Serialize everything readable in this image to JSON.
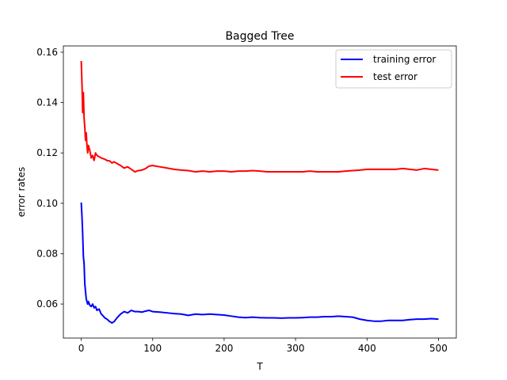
{
  "chart_data": {
    "type": "line",
    "title": "Bagged Tree",
    "xlabel": "T",
    "ylabel": "error rates",
    "xlim": [
      -25,
      525
    ],
    "ylim": [
      0.0465,
      0.1625
    ],
    "x_ticks": [
      0,
      100,
      200,
      300,
      400,
      500
    ],
    "x_tick_labels": [
      "0",
      "100",
      "200",
      "300",
      "400",
      "500"
    ],
    "y_ticks": [
      0.06,
      0.08,
      0.1,
      0.12,
      0.14,
      0.16
    ],
    "y_tick_labels": [
      "0.06",
      "0.08",
      "0.10",
      "0.12",
      "0.14",
      "0.16"
    ],
    "grid": false,
    "legend_position": "upper-right",
    "series": [
      {
        "name": "training error",
        "color": "#0000ff",
        "x": [
          0,
          1,
          2,
          3,
          4,
          5,
          6,
          7,
          8,
          9,
          10,
          12,
          14,
          16,
          18,
          20,
          22,
          25,
          28,
          30,
          33,
          36,
          40,
          43,
          46,
          50,
          55,
          60,
          65,
          70,
          75,
          80,
          85,
          90,
          95,
          100,
          110,
          120,
          130,
          140,
          150,
          160,
          170,
          180,
          190,
          200,
          210,
          220,
          230,
          240,
          250,
          260,
          270,
          280,
          290,
          300,
          310,
          320,
          330,
          340,
          350,
          360,
          370,
          380,
          390,
          400,
          410,
          420,
          430,
          440,
          450,
          460,
          470,
          480,
          490,
          500
        ],
        "y": [
          0.1003,
          0.095,
          0.088,
          0.079,
          0.076,
          0.068,
          0.065,
          0.062,
          0.061,
          0.06,
          0.061,
          0.0595,
          0.059,
          0.06,
          0.0585,
          0.059,
          0.0575,
          0.058,
          0.056,
          0.0555,
          0.0545,
          0.054,
          0.053,
          0.0525,
          0.053,
          0.0545,
          0.056,
          0.057,
          0.0565,
          0.0575,
          0.057,
          0.057,
          0.0568,
          0.0572,
          0.0575,
          0.057,
          0.0568,
          0.0565,
          0.0562,
          0.056,
          0.0555,
          0.056,
          0.0558,
          0.056,
          0.0558,
          0.0556,
          0.0552,
          0.0548,
          0.0546,
          0.0548,
          0.0546,
          0.0545,
          0.0545,
          0.0544,
          0.0545,
          0.0545,
          0.0546,
          0.0548,
          0.0548,
          0.055,
          0.055,
          0.0552,
          0.055,
          0.0548,
          0.054,
          0.0535,
          0.0532,
          0.0532,
          0.0535,
          0.0535,
          0.0535,
          0.0538,
          0.054,
          0.054,
          0.0542,
          0.054
        ]
      },
      {
        "name": "test error",
        "color": "#ff0000",
        "x": [
          0,
          1,
          2,
          3,
          4,
          5,
          6,
          7,
          8,
          9,
          10,
          12,
          14,
          16,
          18,
          20,
          22,
          25,
          28,
          30,
          33,
          36,
          40,
          43,
          46,
          50,
          55,
          60,
          65,
          70,
          75,
          80,
          85,
          90,
          95,
          100,
          110,
          120,
          130,
          140,
          150,
          160,
          170,
          180,
          190,
          200,
          210,
          220,
          230,
          240,
          250,
          260,
          270,
          280,
          290,
          300,
          310,
          320,
          330,
          340,
          350,
          360,
          370,
          380,
          390,
          400,
          410,
          420,
          430,
          440,
          450,
          460,
          470,
          480,
          490,
          500
        ],
        "y": [
          0.1565,
          0.148,
          0.136,
          0.144,
          0.134,
          0.13,
          0.125,
          0.128,
          0.123,
          0.12,
          0.123,
          0.121,
          0.118,
          0.119,
          0.117,
          0.12,
          0.119,
          0.1185,
          0.118,
          0.1178,
          0.1175,
          0.117,
          0.1168,
          0.116,
          0.1165,
          0.1158,
          0.115,
          0.114,
          0.1145,
          0.1135,
          0.1125,
          0.113,
          0.1132,
          0.1138,
          0.1148,
          0.115,
          0.1145,
          0.114,
          0.1135,
          0.1132,
          0.113,
          0.1125,
          0.1128,
          0.1125,
          0.1128,
          0.1128,
          0.1125,
          0.1128,
          0.1128,
          0.113,
          0.1128,
          0.1125,
          0.1125,
          0.1125,
          0.1125,
          0.1125,
          0.1125,
          0.1128,
          0.1125,
          0.1125,
          0.1125,
          0.1125,
          0.1128,
          0.113,
          0.1132,
          0.1135,
          0.1135,
          0.1135,
          0.1135,
          0.1135,
          0.1138,
          0.1135,
          0.1132,
          0.1138,
          0.1135,
          0.1132
        ]
      }
    ]
  }
}
